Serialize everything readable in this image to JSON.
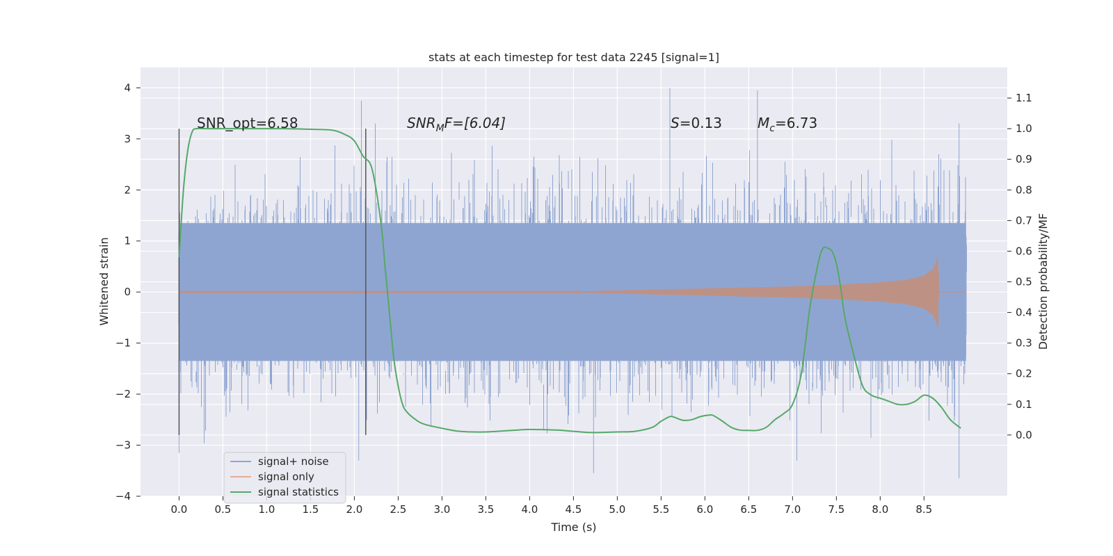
{
  "chart_data": {
    "type": "line",
    "title": "stats at each timestep for test data 2245 [signal=1]",
    "xlabel": "Time (s)",
    "ylabel": "Whitened strain",
    "ylabel_right": "Detection probability/MF",
    "xlim": [
      -0.44,
      9.45
    ],
    "ylim": [
      -4.0,
      4.4
    ],
    "ylim_right": [
      -0.2,
      1.2
    ],
    "xticks": [
      0.0,
      0.5,
      1.0,
      1.5,
      2.0,
      2.5,
      3.0,
      3.5,
      4.0,
      4.5,
      5.0,
      5.5,
      6.0,
      6.5,
      7.0,
      7.5,
      8.0,
      8.5
    ],
    "xtick_labels": [
      "0.0",
      "0.5",
      "1.0",
      "1.5",
      "2.0",
      "2.5",
      "3.0",
      "3.5",
      "4.0",
      "4.5",
      "5.0",
      "5.5",
      "6.0",
      "6.5",
      "7.0",
      "7.5",
      "8.0",
      "8.5"
    ],
    "yticks": [
      -4,
      -3,
      -2,
      -1,
      0,
      1,
      2,
      3,
      4
    ],
    "ytick_labels": [
      "−4",
      "−3",
      "−2",
      "−1",
      "0",
      "1",
      "2",
      "3",
      "4"
    ],
    "yticks_right": [
      0.0,
      0.1,
      0.2,
      0.3,
      0.4,
      0.5,
      0.6,
      0.7,
      0.8,
      0.9,
      1.0,
      1.1
    ],
    "ytick_labels_right": [
      "0.0",
      "0.1",
      "0.2",
      "0.3",
      "0.4",
      "0.5",
      "0.6",
      "0.7",
      "0.8",
      "0.9",
      "1.0",
      "1.1"
    ],
    "grid": true,
    "legend_position": "lower-left",
    "annotations": {
      "snr_opt": "SNR_opt=6.58",
      "snr_mf_sym": "SNR",
      "snr_mf_sub": "M",
      "snr_mf_rest": "F=[6.04]",
      "s_sym": "S",
      "s_rest": "=0.13",
      "mc_sym": "M",
      "mc_sub": "c",
      "mc_rest": "=6.73"
    },
    "vlines": [
      {
        "x": 0.0,
        "ymin": -2.8,
        "ymax": 3.2
      },
      {
        "x": 2.13,
        "ymin": -2.8,
        "ymax": 3.2
      }
    ],
    "series": [
      {
        "name": "signal+ noise",
        "color": "#8fa5d1",
        "axis": "left",
        "x_range": [
          0.0,
          8.98
        ],
        "amplitude_bands": {
          "p90": 1.35,
          "extreme": 3.3
        },
        "peaks": [
          {
            "x": 2.08,
            "y": 3.75
          },
          {
            "x": 5.6,
            "y": 4.0
          },
          {
            "x": 6.6,
            "y": 3.95
          },
          {
            "x": 8.9,
            "y": 3.3
          },
          {
            "x": 0.0,
            "y": -3.15
          },
          {
            "x": 2.05,
            "y": -3.3
          },
          {
            "x": 4.73,
            "y": -3.55
          },
          {
            "x": 8.9,
            "y": -3.65
          }
        ]
      },
      {
        "name": "signal only",
        "color": "#dd8452",
        "axis": "left",
        "x": [
          0.0,
          4.5,
          5.0,
          5.5,
          6.0,
          6.5,
          7.0,
          7.5,
          8.0,
          8.3,
          8.5,
          8.6,
          8.64,
          8.66,
          8.67,
          8.98
        ],
        "envelope": [
          0.01,
          0.01,
          0.03,
          0.05,
          0.07,
          0.09,
          0.11,
          0.14,
          0.19,
          0.24,
          0.32,
          0.45,
          0.6,
          0.75,
          0.0,
          0.0
        ]
      },
      {
        "name": "signal statistics",
        "color": "#55a868",
        "axis": "right",
        "x": [
          0.0,
          0.05,
          0.1,
          0.15,
          0.2,
          0.3,
          0.5,
          0.8,
          1.2,
          1.5,
          1.75,
          1.9,
          2.0,
          2.1,
          2.2,
          2.3,
          2.35,
          2.4,
          2.45,
          2.5,
          2.55,
          2.6,
          2.7,
          2.8,
          3.0,
          3.2,
          3.5,
          3.8,
          4.0,
          4.3,
          4.5,
          4.7,
          5.0,
          5.2,
          5.4,
          5.5,
          5.6,
          5.65,
          5.75,
          5.85,
          5.95,
          6.05,
          6.1,
          6.2,
          6.3,
          6.4,
          6.5,
          6.6,
          6.7,
          6.8,
          6.9,
          7.0,
          7.1,
          7.2,
          7.3,
          7.35,
          7.4,
          7.45,
          7.5,
          7.55,
          7.6,
          7.7,
          7.8,
          7.9,
          8.0,
          8.1,
          8.2,
          8.3,
          8.4,
          8.5,
          8.6,
          8.7,
          8.8,
          8.92
        ],
        "y": [
          0.58,
          0.8,
          0.93,
          0.99,
          1.0,
          1.0,
          1.0,
          1.0,
          1.0,
          0.998,
          0.995,
          0.98,
          0.96,
          0.91,
          0.87,
          0.7,
          0.55,
          0.4,
          0.25,
          0.16,
          0.1,
          0.075,
          0.05,
          0.035,
          0.022,
          0.012,
          0.01,
          0.015,
          0.018,
          0.016,
          0.012,
          0.008,
          0.01,
          0.012,
          0.025,
          0.045,
          0.06,
          0.058,
          0.048,
          0.05,
          0.06,
          0.065,
          0.063,
          0.045,
          0.025,
          0.016,
          0.015,
          0.015,
          0.025,
          0.05,
          0.07,
          0.1,
          0.2,
          0.42,
          0.57,
          0.61,
          0.61,
          0.6,
          0.56,
          0.48,
          0.38,
          0.26,
          0.16,
          0.13,
          0.12,
          0.11,
          0.1,
          0.1,
          0.11,
          0.13,
          0.12,
          0.09,
          0.05,
          0.022
        ]
      }
    ]
  },
  "colors": {
    "plot_bg": "#eaeaf2",
    "grid": "#ffffff",
    "noise": "#8fa5d1",
    "signal": "#dd8452",
    "stats": "#55a868",
    "vline": "#555555"
  }
}
